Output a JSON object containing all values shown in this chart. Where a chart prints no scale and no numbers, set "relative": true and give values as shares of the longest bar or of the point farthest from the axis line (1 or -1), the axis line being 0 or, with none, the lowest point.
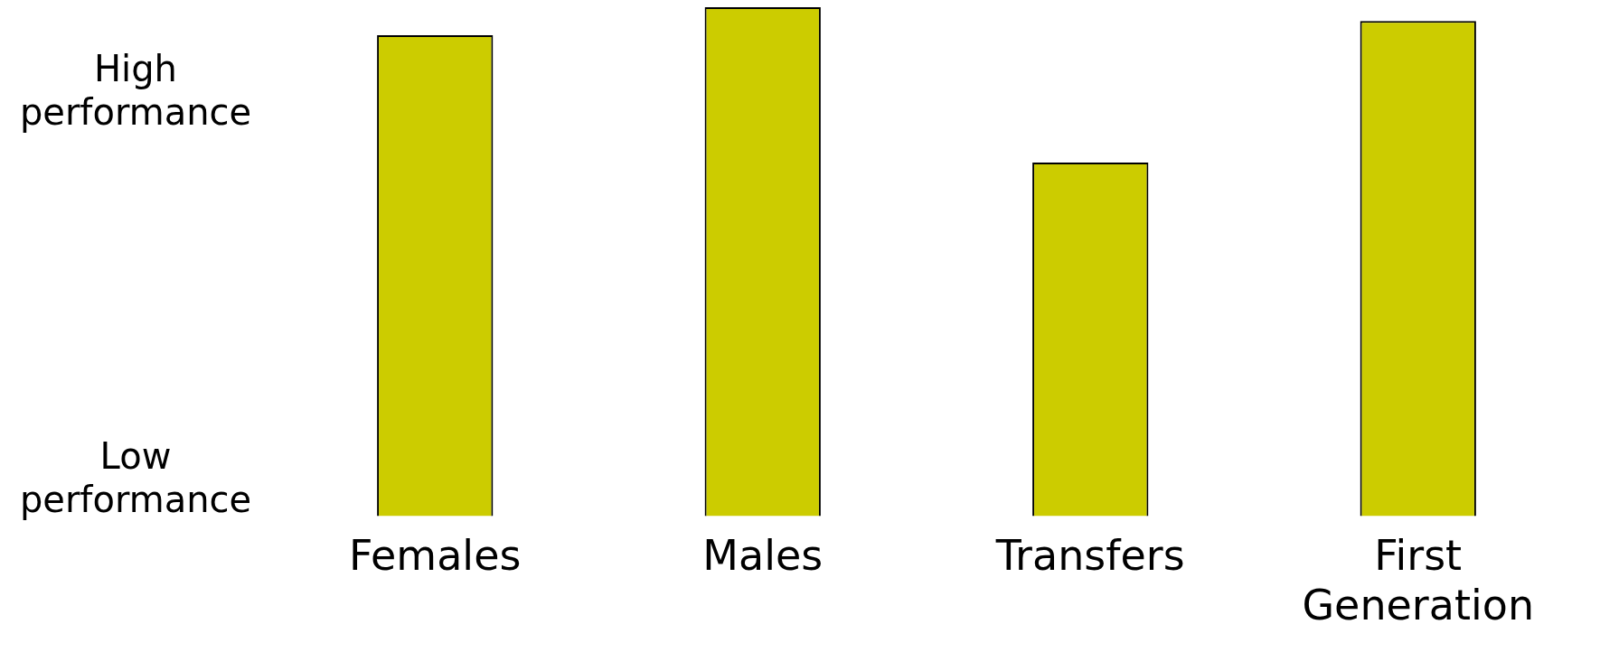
{
  "chart_data": {
    "type": "bar",
    "relative": true,
    "categories": [
      "Females",
      "Males",
      "Transfers",
      "First Generation"
    ],
    "values": [
      0.945,
      1,
      0.695,
      0.973
    ],
    "color": "#cccc00",
    "annotations": [
      "High performance",
      "Low performance"
    ],
    "grid": false,
    "legend": false
  }
}
